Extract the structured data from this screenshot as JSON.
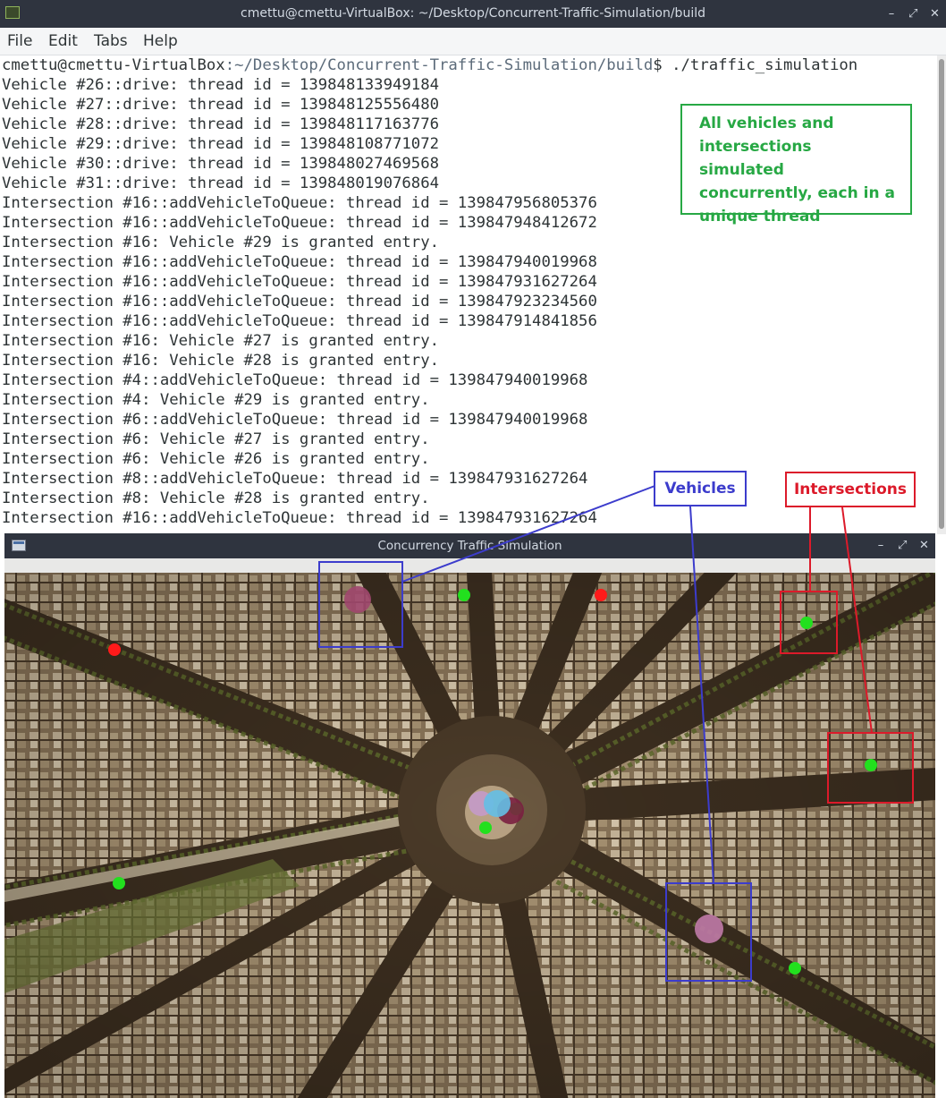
{
  "terminal": {
    "title": "cmettu@cmettu-VirtualBox: ~/Desktop/Concurrent-Traffic-Simulation/build",
    "menu": [
      "File",
      "Edit",
      "Tabs",
      "Help"
    ],
    "prompt_user": "cmettu@cmettu-VirtualBox",
    "prompt_path": ":~/Desktop/Concurrent-Traffic-Simulation/build",
    "prompt_command": "$ ./traffic_simulation",
    "lines": [
      "Vehicle #26::drive: thread id = 139848133949184",
      "Vehicle #27::drive: thread id = 139848125556480",
      "Vehicle #28::drive: thread id = 139848117163776",
      "Vehicle #29::drive: thread id = 139848108771072",
      "Vehicle #30::drive: thread id = 139848027469568",
      "Vehicle #31::drive: thread id = 139848019076864",
      "Intersection #16::addVehicleToQueue: thread id = 139847956805376",
      "Intersection #16::addVehicleToQueue: thread id = 139847948412672",
      "Intersection #16: Vehicle #29 is granted entry.",
      "Intersection #16::addVehicleToQueue: thread id = 139847940019968",
      "Intersection #16::addVehicleToQueue: thread id = 139847931627264",
      "Intersection #16::addVehicleToQueue: thread id = 139847923234560",
      "Intersection #16::addVehicleToQueue: thread id = 139847914841856",
      "Intersection #16: Vehicle #27 is granted entry.",
      "Intersection #16: Vehicle #28 is granted entry.",
      "Intersection #4::addVehicleToQueue: thread id = 139847940019968",
      "Intersection #4: Vehicle #29 is granted entry.",
      "Intersection #6::addVehicleToQueue: thread id = 139847940019968",
      "Intersection #6: Vehicle #27 is granted entry.",
      "Intersection #6: Vehicle #26 is granted entry.",
      "Intersection #8::addVehicleToQueue: thread id = 139847931627264",
      "Intersection #8: Vehicle #28 is granted entry.",
      "Intersection #16::addVehicleToQueue: thread id = 139847931627264"
    ]
  },
  "simulation_window": {
    "title": "Concurrency Traffic Simulation"
  },
  "annotations": {
    "concurrent_note": "All vehicles and\nintersections simulated\nconcurrently, each in a\nunique thread",
    "vehicles_label": "Vehicles",
    "intersections_label": "Intersections"
  },
  "colors": {
    "intersection_green": "#22e01e",
    "intersection_red": "#ff1a1a",
    "vehicle_pink": "#c07aa8",
    "annotation_green": "#27a844",
    "annotation_blue": "#3c3ccc",
    "annotation_red": "#dc1a2a"
  },
  "window_buttons": [
    "–",
    "⤢",
    "✕"
  ]
}
